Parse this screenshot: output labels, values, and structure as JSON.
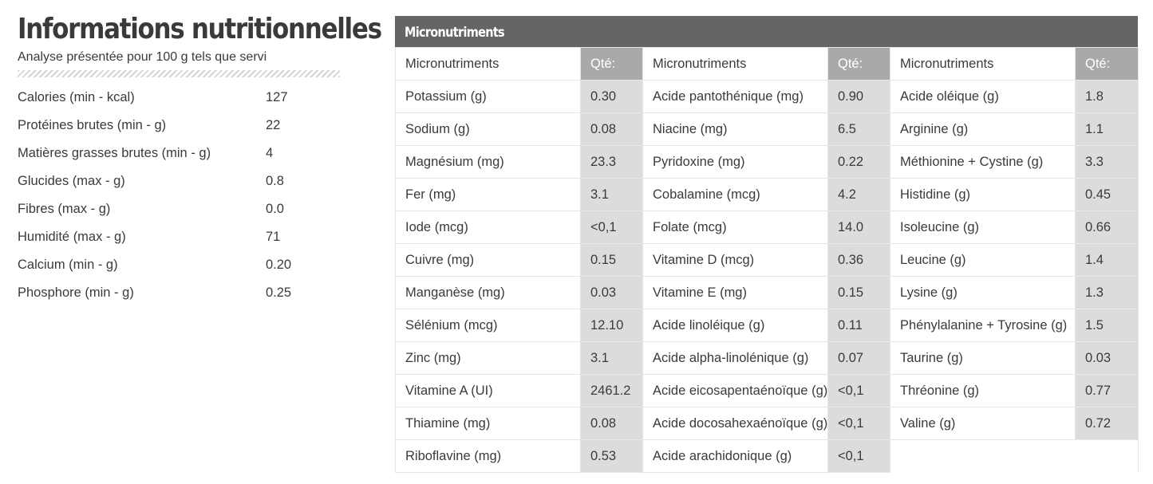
{
  "title": "Informations nutritionnelles",
  "subtitle": "Analyse présentée pour 100 g tels que servi",
  "macros": [
    {
      "label": "Calories (min - kcal)",
      "value": "127"
    },
    {
      "label": "Protéines brutes (min - g)",
      "value": "22"
    },
    {
      "label": "Matières grasses brutes (min - g)",
      "value": "4"
    },
    {
      "label": "Glucides (max - g)",
      "value": "0.8"
    },
    {
      "label": "Fibres (max - g)",
      "value": "0.0"
    },
    {
      "label": "Humidité (max - g)",
      "value": "71"
    },
    {
      "label": "Calcium (min - g)",
      "value": "0.20"
    },
    {
      "label": "Phosphore (min - g)",
      "value": "0.25"
    }
  ],
  "micro": {
    "header": "Micronutriments",
    "col_name_label": "Micronutriments",
    "col_qty_label": "Qté:",
    "columns": [
      [
        {
          "name": "Potassium (g)",
          "qty": "0.30"
        },
        {
          "name": "Sodium (g)",
          "qty": "0.08"
        },
        {
          "name": "Magnésium (mg)",
          "qty": "23.3"
        },
        {
          "name": "Fer (mg)",
          "qty": "3.1"
        },
        {
          "name": "Iode (mcg)",
          "qty": "<0,1"
        },
        {
          "name": "Cuivre (mg)",
          "qty": "0.15"
        },
        {
          "name": "Manganèse (mg)",
          "qty": "0.03"
        },
        {
          "name": "Sélénium (mcg)",
          "qty": "12.10"
        },
        {
          "name": "Zinc (mg)",
          "qty": "3.1"
        },
        {
          "name": "Vitamine A (UI)",
          "qty": "2461.2"
        },
        {
          "name": "Thiamine (mg)",
          "qty": "0.08"
        },
        {
          "name": "Riboflavine (mg)",
          "qty": "0.53"
        }
      ],
      [
        {
          "name": "Acide pantothénique (mg)",
          "qty": "0.90"
        },
        {
          "name": "Niacine (mg)",
          "qty": "6.5"
        },
        {
          "name": "Pyridoxine (mg)",
          "qty": "0.22"
        },
        {
          "name": "Cobalamine (mcg)",
          "qty": "4.2"
        },
        {
          "name": "Folate (mcg)",
          "qty": "14.0"
        },
        {
          "name": "Vitamine D (mcg)",
          "qty": "0.36"
        },
        {
          "name": "Vitamine E (mg)",
          "qty": "0.15"
        },
        {
          "name": "Acide linoléique (g)",
          "qty": "0.11"
        },
        {
          "name": "Acide alpha-linolénique (g)",
          "qty": "0.07"
        },
        {
          "name": "Acide eicosapentaénoïque (g)",
          "qty": "<0,1"
        },
        {
          "name": "Acide docosahexaénoïque (g)",
          "qty": "<0,1"
        },
        {
          "name": "Acide arachidonique (g)",
          "qty": "<0,1"
        }
      ],
      [
        {
          "name": "Acide oléique (g)",
          "qty": "1.8"
        },
        {
          "name": "Arginine (g)",
          "qty": "1.1"
        },
        {
          "name": "Méthionine + Cystine (g)",
          "qty": "3.3"
        },
        {
          "name": "Histidine (g)",
          "qty": "0.45"
        },
        {
          "name": "Isoleucine (g)",
          "qty": "0.66"
        },
        {
          "name": "Leucine (g)",
          "qty": "1.4"
        },
        {
          "name": "Lysine (g)",
          "qty": "1.3"
        },
        {
          "name": "Phénylalanine + Tyrosine (g)",
          "qty": "1.5"
        },
        {
          "name": "Taurine (g)",
          "qty": "0.03"
        },
        {
          "name": "Thréonine (g)",
          "qty": "0.77"
        },
        {
          "name": "Valine (g)",
          "qty": "0.72"
        }
      ]
    ]
  }
}
